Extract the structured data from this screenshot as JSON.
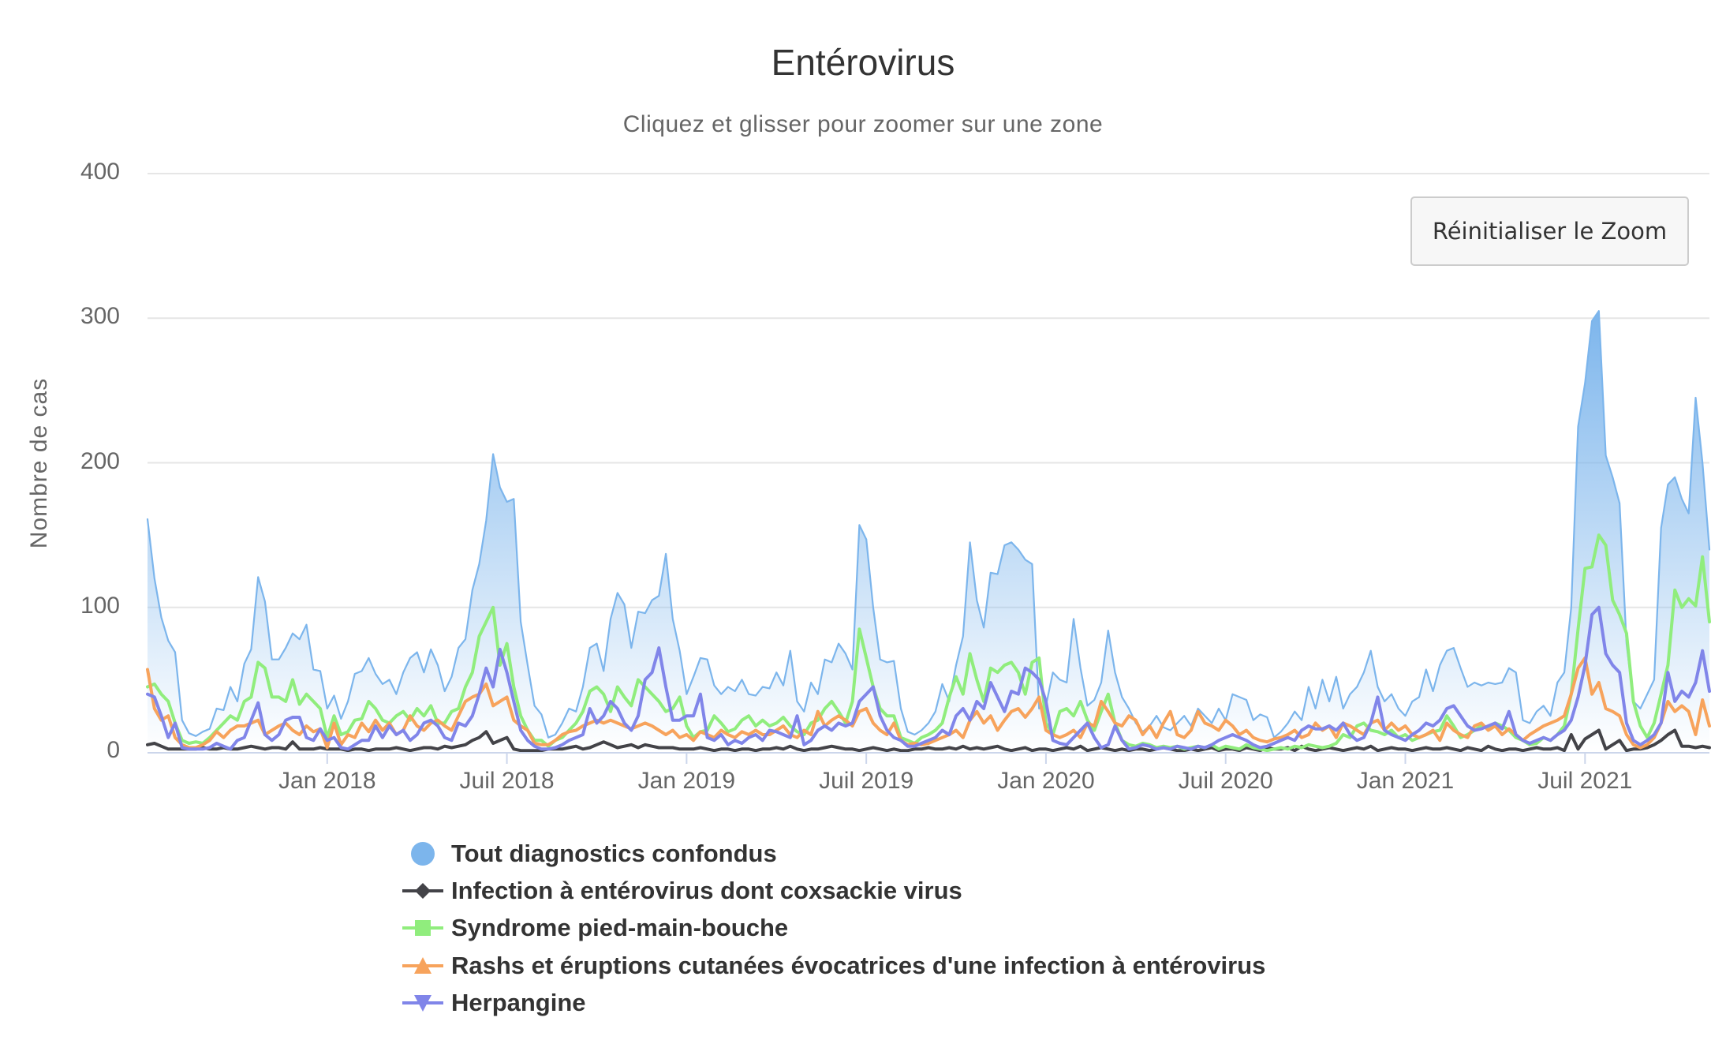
{
  "header": {
    "title": "Entérovirus",
    "subtitle": "Cliquez et glisser pour zoomer sur une zone"
  },
  "reset_zoom": {
    "label": "Réinitialiser le Zoom"
  },
  "colors": {
    "total": "#7cb5ec",
    "infection": "#434348",
    "hfmd": "#90ed7d",
    "rash": "#f7a35c",
    "herpangine": "#8085e9",
    "gridline": "#e6e6e6",
    "axis": "#ccd6eb"
  },
  "legend": {
    "items": [
      {
        "label": "Tout diagnostics confondus",
        "symbol": "circle",
        "color": "#7cb5ec"
      },
      {
        "label": "Infection à entérovirus dont coxsackie virus",
        "symbol": "diamond",
        "color": "#434348"
      },
      {
        "label": "Syndrome pied-main-bouche",
        "symbol": "square",
        "color": "#90ed7d"
      },
      {
        "label": "Rashs et éruptions cutanées évocatrices d'une infection à entérovirus",
        "symbol": "triangle",
        "color": "#f7a35c"
      },
      {
        "label": "Herpangine",
        "symbol": "triangle-down",
        "color": "#8085e9"
      }
    ]
  },
  "chart_data": {
    "type": "line",
    "title": "Entérovirus",
    "subtitle": "Cliquez et glisser pour zoomer sur une zone",
    "xlabel": "",
    "ylabel": "Nombre de cas",
    "ylim": [
      0,
      400
    ],
    "yticks": [
      "0",
      "100",
      "200",
      "300",
      "400"
    ],
    "grid": true,
    "legend_position": "bottom",
    "x_frequency": "weekly",
    "x_start_approx": "2017-07-03",
    "x_end_approx": "2021-11-01",
    "xticks": [
      {
        "label": "Jan 2018",
        "week_index": 26
      },
      {
        "label": "Juil 2018",
        "week_index": 52
      },
      {
        "label": "Jan 2019",
        "week_index": 78
      },
      {
        "label": "Juil 2019",
        "week_index": 104
      },
      {
        "label": "Jan 2020",
        "week_index": 130
      },
      {
        "label": "Juil 2020",
        "week_index": 156
      },
      {
        "label": "Jan 2021",
        "week_index": 182
      },
      {
        "label": "Juil 2021",
        "week_index": 208
      }
    ],
    "series": [
      {
        "name": "Tout diagnostics confondus",
        "key": "total",
        "type": "area",
        "color": "#7cb5ec",
        "values": [
          161,
          120,
          93,
          77,
          69,
          22,
          13,
          11,
          14,
          16,
          30,
          29,
          45,
          35,
          61,
          71,
          121,
          104,
          64,
          64,
          72,
          82,
          78,
          88,
          57,
          56,
          30,
          39,
          23,
          35,
          54,
          56,
          65,
          54,
          47,
          50,
          40,
          55,
          65,
          69,
          55,
          71,
          60,
          42,
          52,
          72,
          78,
          112,
          130,
          160,
          206,
          183,
          173,
          175,
          90,
          60,
          32,
          26,
          10,
          12,
          20,
          30,
          28,
          45,
          72,
          75,
          56,
          92,
          110,
          102,
          72,
          97,
          96,
          105,
          108,
          137,
          92,
          70,
          40,
          52,
          65,
          64,
          46,
          40,
          45,
          42,
          50,
          40,
          39,
          45,
          44,
          55,
          46,
          70,
          35,
          28,
          48,
          40,
          64,
          62,
          75,
          68,
          57,
          157,
          147,
          100,
          64,
          62,
          63,
          30,
          14,
          12,
          15,
          20,
          28,
          47,
          35,
          60,
          80,
          145,
          105,
          86,
          124,
          123,
          143,
          145,
          140,
          133,
          130,
          30,
          32,
          55,
          50,
          48,
          92,
          58,
          32,
          36,
          48,
          84,
          55,
          38,
          30,
          20,
          14,
          18,
          25,
          17,
          15,
          20,
          25,
          18,
          30,
          25,
          20,
          30,
          22,
          40,
          38,
          36,
          22,
          26,
          24,
          10,
          14,
          20,
          28,
          22,
          45,
          30,
          50,
          35,
          52,
          30,
          40,
          45,
          55,
          70,
          45,
          35,
          40,
          30,
          25,
          35,
          38,
          57,
          42,
          60,
          70,
          72,
          58,
          45,
          48,
          46,
          48,
          47,
          48,
          58,
          55,
          22,
          20,
          28,
          32,
          25,
          48,
          55,
          100,
          225,
          255,
          298,
          305,
          205,
          190,
          172,
          75,
          35,
          30,
          40,
          50,
          155,
          185,
          190,
          175,
          165,
          245,
          200,
          140
        ]
      },
      {
        "name": "Infection à entérovirus dont coxsackie virus",
        "key": "infection",
        "type": "line",
        "color": "#434348",
        "values": [
          5,
          6,
          4,
          2,
          2,
          2,
          2,
          2,
          3,
          2,
          2,
          3,
          2,
          2,
          3,
          4,
          3,
          2,
          3,
          3,
          2,
          7,
          2,
          2,
          2,
          3,
          2,
          2,
          2,
          1,
          2,
          2,
          1,
          2,
          2,
          2,
          3,
          2,
          1,
          2,
          3,
          3,
          2,
          4,
          3,
          4,
          5,
          8,
          10,
          14,
          6,
          8,
          10,
          2,
          1,
          1,
          1,
          1,
          2,
          2,
          2,
          3,
          4,
          2,
          3,
          5,
          7,
          5,
          3,
          4,
          5,
          3,
          5,
          4,
          3,
          3,
          3,
          2,
          2,
          2,
          3,
          2,
          1,
          2,
          2,
          1,
          2,
          2,
          1,
          2,
          2,
          3,
          2,
          4,
          2,
          1,
          2,
          2,
          3,
          4,
          3,
          2,
          2,
          1,
          2,
          3,
          2,
          1,
          2,
          1,
          1,
          2,
          2,
          3,
          2,
          2,
          3,
          2,
          4,
          2,
          3,
          2,
          3,
          4,
          2,
          1,
          2,
          3,
          1,
          2,
          2,
          1,
          2,
          3,
          2,
          4,
          1,
          2,
          3,
          2,
          1,
          2,
          1,
          2,
          2,
          1,
          2,
          3,
          2,
          1,
          1,
          2,
          1,
          2,
          3,
          1,
          2,
          2,
          1,
          3,
          2,
          1,
          3,
          2,
          2,
          3,
          1,
          4,
          2,
          1,
          2,
          3,
          2,
          1,
          2,
          3,
          2,
          4,
          1,
          2,
          3,
          2,
          2,
          1,
          2,
          3,
          2,
          2,
          3,
          2,
          1,
          3,
          2,
          1,
          4,
          2,
          1,
          2,
          2,
          1,
          2,
          3,
          2,
          2,
          3,
          1,
          12,
          2,
          9,
          12,
          15,
          2,
          5,
          8,
          1,
          2,
          2,
          3,
          5,
          8,
          12,
          15,
          4,
          4,
          3,
          4,
          3
        ]
      },
      {
        "name": "Syndrome pied-main-bouche",
        "key": "hfmd",
        "type": "line",
        "color": "#90ed7d",
        "values": [
          45,
          47,
          40,
          35,
          20,
          8,
          6,
          7,
          6,
          10,
          15,
          20,
          25,
          22,
          35,
          38,
          62,
          58,
          38,
          38,
          35,
          50,
          33,
          40,
          35,
          30,
          10,
          25,
          12,
          14,
          22,
          23,
          35,
          30,
          22,
          20,
          25,
          28,
          22,
          30,
          25,
          32,
          20,
          20,
          28,
          30,
          45,
          55,
          80,
          90,
          100,
          60,
          75,
          45,
          25,
          15,
          8,
          8,
          4,
          8,
          10,
          15,
          20,
          28,
          42,
          45,
          40,
          28,
          45,
          38,
          32,
          50,
          45,
          40,
          35,
          28,
          30,
          38,
          18,
          10,
          14,
          15,
          25,
          20,
          14,
          16,
          22,
          25,
          18,
          22,
          18,
          20,
          24,
          18,
          14,
          12,
          20,
          22,
          30,
          35,
          28,
          20,
          35,
          85,
          65,
          45,
          30,
          25,
          25,
          10,
          8,
          6,
          10,
          12,
          15,
          20,
          38,
          52,
          40,
          68,
          50,
          35,
          58,
          55,
          60,
          62,
          55,
          40,
          62,
          65,
          20,
          12,
          28,
          30,
          25,
          35,
          22,
          15,
          28,
          40,
          20,
          8,
          5,
          4,
          6,
          5,
          3,
          4,
          3,
          4,
          2,
          3,
          4,
          3,
          5,
          2,
          4,
          3,
          2,
          5,
          3,
          2,
          1,
          2,
          3,
          2,
          4,
          3,
          5,
          4,
          3,
          4,
          6,
          12,
          10,
          18,
          20,
          15,
          14,
          12,
          15,
          10,
          12,
          8,
          10,
          12,
          14,
          15,
          25,
          18,
          10,
          12,
          15,
          18,
          17,
          20,
          18,
          15,
          10,
          8,
          5,
          6,
          10,
          8,
          12,
          18,
          40,
          85,
          127,
          128,
          150,
          143,
          105,
          95,
          82,
          35,
          18,
          10,
          20,
          40,
          60,
          112,
          100,
          106,
          101,
          135,
          90
        ]
      },
      {
        "name": "Rashs et éruptions cutanées évocatrices d'une infection à entérovirus",
        "key": "rash",
        "type": "line",
        "color": "#f7a35c",
        "values": [
          57,
          30,
          22,
          25,
          10,
          5,
          3,
          3,
          5,
          8,
          14,
          10,
          15,
          18,
          18,
          20,
          22,
          12,
          15,
          18,
          20,
          15,
          12,
          18,
          14,
          16,
          3,
          20,
          5,
          12,
          10,
          20,
          14,
          22,
          15,
          20,
          12,
          15,
          25,
          18,
          15,
          20,
          22,
          18,
          15,
          25,
          35,
          38,
          40,
          47,
          32,
          35,
          38,
          22,
          18,
          15,
          6,
          5,
          5,
          8,
          12,
          14,
          15,
          18,
          20,
          22,
          20,
          22,
          20,
          18,
          16,
          18,
          20,
          18,
          15,
          12,
          15,
          10,
          12,
          8,
          14,
          12,
          10,
          15,
          12,
          10,
          14,
          12,
          15,
          12,
          12,
          15,
          18,
          12,
          10,
          15,
          12,
          28,
          18,
          22,
          25,
          22,
          18,
          28,
          30,
          20,
          15,
          12,
          20,
          8,
          5,
          6,
          5,
          6,
          8,
          10,
          12,
          15,
          10,
          22,
          28,
          20,
          25,
          15,
          22,
          28,
          30,
          24,
          30,
          38,
          15,
          12,
          10,
          12,
          15,
          10,
          20,
          18,
          35,
          28,
          20,
          18,
          25,
          22,
          12,
          18,
          10,
          20,
          28,
          12,
          10,
          15,
          28,
          20,
          18,
          15,
          22,
          18,
          12,
          15,
          10,
          8,
          7,
          9,
          10,
          12,
          15,
          10,
          12,
          20,
          15,
          18,
          10,
          20,
          18,
          15,
          12,
          20,
          22,
          15,
          20,
          15,
          18,
          12,
          10,
          12,
          15,
          8,
          20,
          15,
          12,
          10,
          18,
          20,
          15,
          18,
          12,
          16,
          12,
          8,
          12,
          15,
          18,
          20,
          22,
          25,
          40,
          58,
          65,
          40,
          48,
          30,
          28,
          25,
          12,
          5,
          3,
          5,
          10,
          20,
          35,
          28,
          32,
          28,
          12,
          36,
          18
        ]
      },
      {
        "name": "Herpangine",
        "key": "herpangine",
        "type": "line",
        "color": "#8085e9",
        "values": [
          40,
          38,
          25,
          10,
          20,
          3,
          2,
          2,
          2,
          3,
          6,
          4,
          2,
          8,
          10,
          22,
          34,
          12,
          8,
          12,
          22,
          24,
          24,
          10,
          8,
          16,
          8,
          10,
          3,
          2,
          5,
          8,
          8,
          18,
          10,
          18,
          12,
          15,
          8,
          12,
          20,
          22,
          18,
          10,
          8,
          20,
          18,
          25,
          40,
          58,
          45,
          71,
          55,
          35,
          15,
          8,
          4,
          2,
          2,
          3,
          5,
          8,
          10,
          12,
          30,
          20,
          25,
          35,
          30,
          20,
          15,
          25,
          50,
          55,
          72,
          45,
          22,
          22,
          25,
          25,
          40,
          10,
          8,
          12,
          5,
          8,
          6,
          10,
          12,
          8,
          15,
          14,
          12,
          10,
          25,
          5,
          8,
          15,
          18,
          15,
          20,
          18,
          20,
          35,
          40,
          45,
          25,
          15,
          10,
          8,
          4,
          4,
          6,
          8,
          10,
          15,
          12,
          25,
          30,
          22,
          35,
          30,
          48,
          38,
          28,
          42,
          40,
          58,
          55,
          50,
          35,
          8,
          6,
          5,
          10,
          15,
          20,
          10,
          3,
          5,
          18,
          8,
          2,
          3,
          5,
          4,
          2,
          3,
          2,
          4,
          3,
          2,
          4,
          3,
          5,
          8,
          10,
          12,
          10,
          8,
          5,
          3,
          4,
          6,
          8,
          10,
          8,
          15,
          18,
          16,
          16,
          18,
          15,
          20,
          12,
          8,
          10,
          20,
          38,
          15,
          12,
          10,
          8,
          12,
          15,
          20,
          18,
          22,
          30,
          32,
          25,
          18,
          15,
          16,
          18,
          20,
          16,
          28,
          12,
          8,
          6,
          8,
          10,
          8,
          12,
          15,
          22,
          38,
          60,
          95,
          100,
          68,
          60,
          55,
          20,
          8,
          5,
          8,
          12,
          20,
          55,
          35,
          42,
          38,
          48,
          70,
          42
        ]
      }
    ]
  }
}
